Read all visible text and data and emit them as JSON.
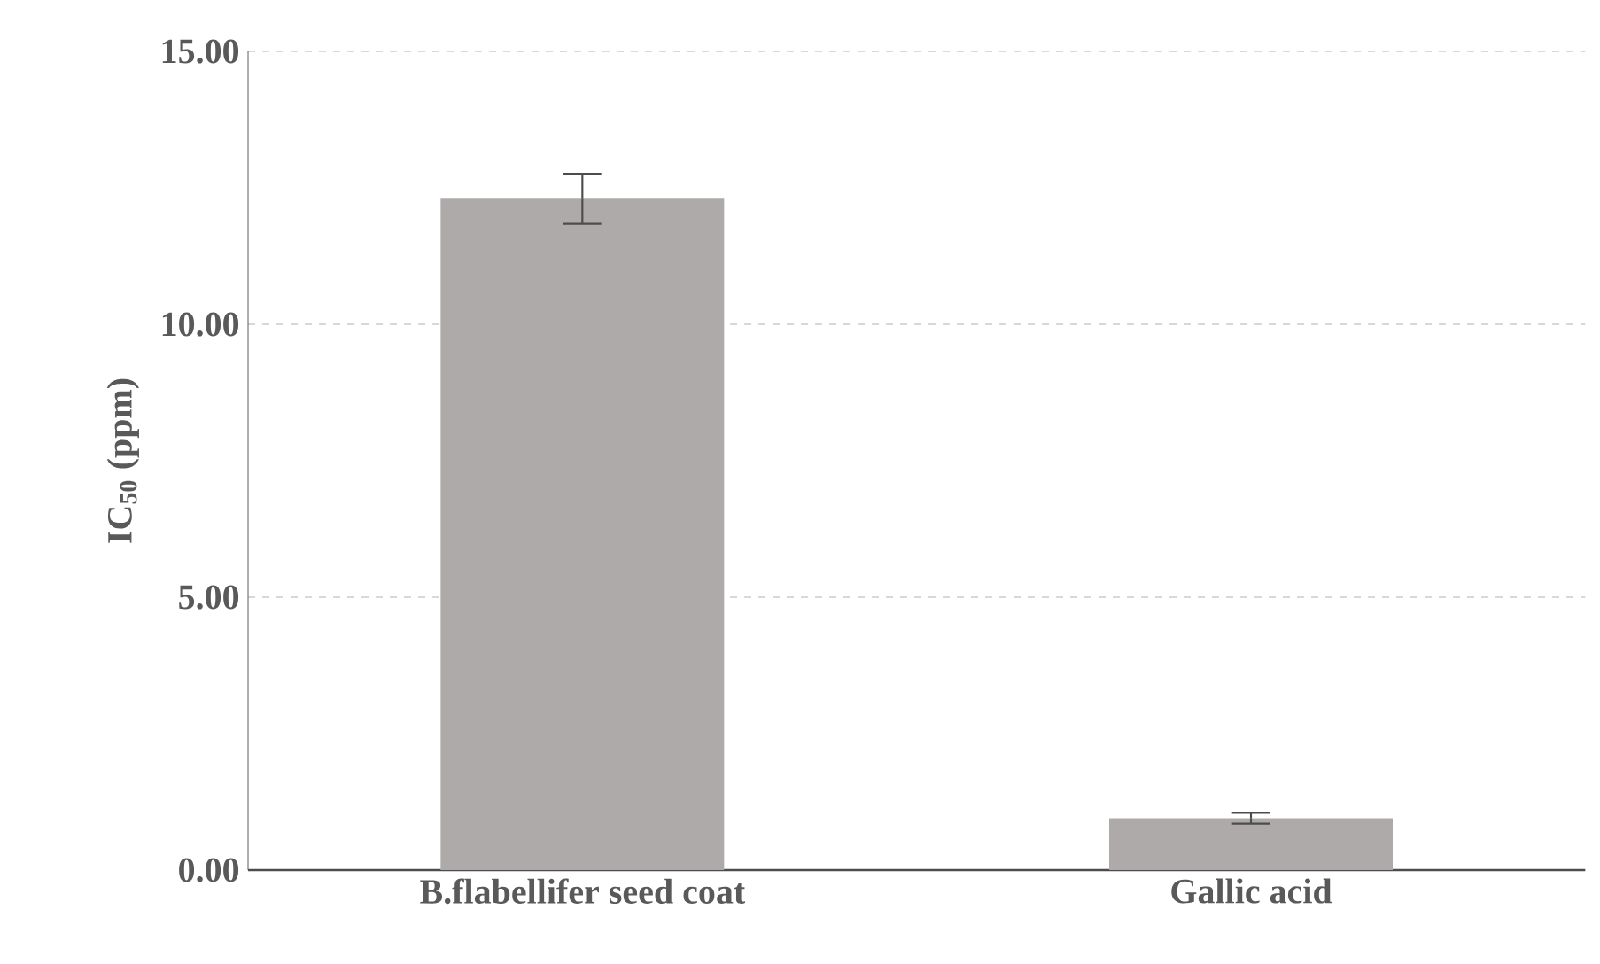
{
  "chart_data": {
    "type": "bar",
    "ylabel": "IC$_{50}$ (ppm)",
    "categories": [
      "B.flabellifer seed coat",
      "Gallic acid"
    ],
    "values": [
      12.3,
      0.95
    ],
    "errors": [
      0.46,
      0.1
    ],
    "color": "#aeaaaa",
    "ylim": [
      0,
      15
    ],
    "yticks": [
      {
        "value": 0,
        "label": "0.00"
      },
      {
        "value": 5,
        "label": "5.00"
      },
      {
        "value": 10,
        "label": "10.00"
      },
      {
        "value": 15,
        "label": "15.00"
      }
    ],
    "grid": "y"
  }
}
